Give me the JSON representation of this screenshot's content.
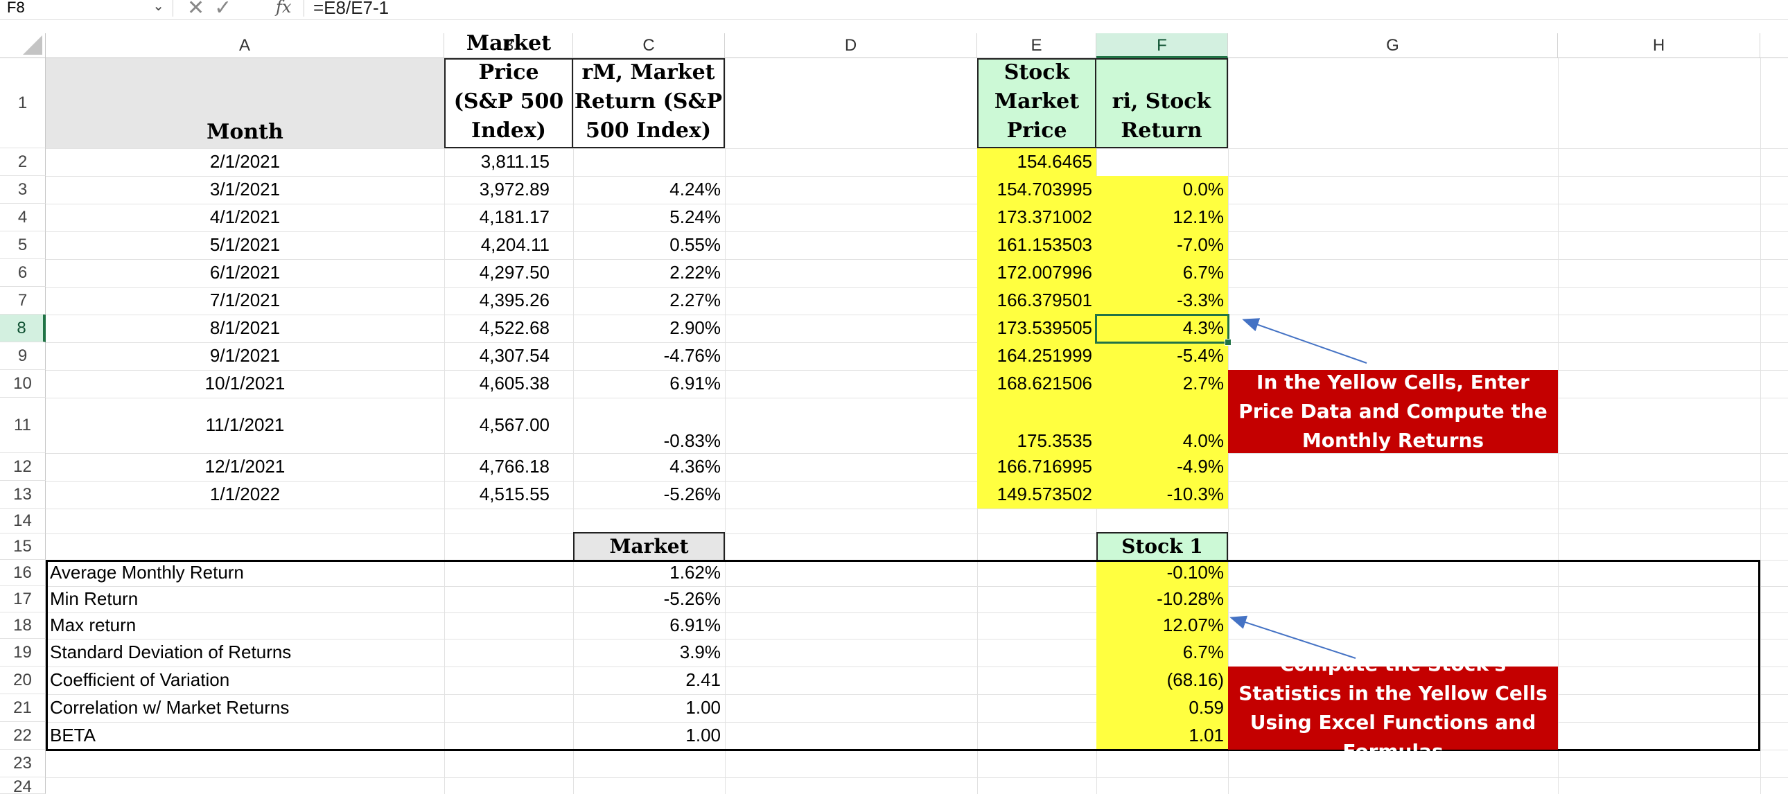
{
  "formula_bar": {
    "name_box": "F8",
    "fx_label": "fx",
    "formula": "=E8/E7-1"
  },
  "columns": [
    "A",
    "B",
    "C",
    "D",
    "E",
    "F",
    "G",
    "H"
  ],
  "selected_column": "F",
  "rows": [
    "1",
    "2",
    "3",
    "4",
    "5",
    "6",
    "7",
    "8",
    "9",
    "10",
    "11",
    "12",
    "13",
    "14",
    "15",
    "16",
    "17",
    "18",
    "19",
    "20",
    "21",
    "22",
    "23",
    "24"
  ],
  "selected_row": "8",
  "headers": {
    "month": "Month",
    "market_price": "Market Price (S&P 500 Index)",
    "market_return": "rM, Market Return (S&P 500 Index)",
    "stock_price": "Stock Market Price",
    "stock_return": "ri, Stock Return"
  },
  "data_rows": [
    {
      "month": "2/1/2021",
      "market_price": "3,811.15",
      "market_return": "",
      "stock_price": "154.6465",
      "stock_return": ""
    },
    {
      "month": "3/1/2021",
      "market_price": "3,972.89",
      "market_return": "4.24%",
      "stock_price": "154.703995",
      "stock_return": "0.0%"
    },
    {
      "month": "4/1/2021",
      "market_price": "4,181.17",
      "market_return": "5.24%",
      "stock_price": "173.371002",
      "stock_return": "12.1%"
    },
    {
      "month": "5/1/2021",
      "market_price": "4,204.11",
      "market_return": "0.55%",
      "stock_price": "161.153503",
      "stock_return": "-7.0%"
    },
    {
      "month": "6/1/2021",
      "market_price": "4,297.50",
      "market_return": "2.22%",
      "stock_price": "172.007996",
      "stock_return": "6.7%"
    },
    {
      "month": "7/1/2021",
      "market_price": "4,395.26",
      "market_return": "2.27%",
      "stock_price": "166.379501",
      "stock_return": "-3.3%"
    },
    {
      "month": "8/1/2021",
      "market_price": "4,522.68",
      "market_return": "2.90%",
      "stock_price": "173.539505",
      "stock_return": "4.3%"
    },
    {
      "month": "9/1/2021",
      "market_price": "4,307.54",
      "market_return": "-4.76%",
      "stock_price": "164.251999",
      "stock_return": "-5.4%"
    },
    {
      "month": "10/1/2021",
      "market_price": "4,605.38",
      "market_return": "6.91%",
      "stock_price": "168.621506",
      "stock_return": "2.7%"
    },
    {
      "month": "11/1/2021",
      "market_price": "4,567.00",
      "market_return": "-0.83%",
      "stock_price": "175.3535",
      "stock_return": "4.0%"
    },
    {
      "month": "12/1/2021",
      "market_price": "4,766.18",
      "market_return": "4.36%",
      "stock_price": "166.716995",
      "stock_return": "-4.9%"
    },
    {
      "month": "1/1/2022",
      "market_price": "4,515.55",
      "market_return": "-5.26%",
      "stock_price": "149.573502",
      "stock_return": "-10.3%"
    }
  ],
  "stats": {
    "market_header": "Market",
    "stock_header": "Stock 1",
    "rows": [
      {
        "label": "Average Monthly Return",
        "market": "1.62%",
        "stock": "-0.10%"
      },
      {
        "label": "Min Return",
        "market": "-5.26%",
        "stock": "-10.28%"
      },
      {
        "label": "Max return",
        "market": "6.91%",
        "stock": "12.07%"
      },
      {
        "label": "Standard Deviation of Returns",
        "market": "3.9%",
        "stock": "6.7%"
      },
      {
        "label": "Coefficient of Variation",
        "market": "2.41",
        "stock": "(68.16)"
      },
      {
        "label": "Correlation w/ Market Returns",
        "market": "1.00",
        "stock": "0.59"
      },
      {
        "label": "BETA",
        "market": "1.00",
        "stock": "1.01"
      }
    ]
  },
  "notes": {
    "note1": "In the Yellow Cells, Enter Price Data and Compute the Monthly Returns",
    "note2": "Compute the Stock's Statistics in the Yellow Cells Using Excel Functions and Formulas"
  },
  "colors": {
    "yellow_fill": "#ffff40",
    "header_green": "#ccf9d6",
    "header_grey": "#e6e6e6",
    "note_red": "#c40000",
    "selection_green": "#217346",
    "arrow_blue": "#4472c4"
  },
  "icons": {
    "cancel": "cancel-x-icon",
    "confirm": "checkmark-icon",
    "dropdown": "chevron-down-icon",
    "select_all": "select-all-triangle-icon"
  }
}
